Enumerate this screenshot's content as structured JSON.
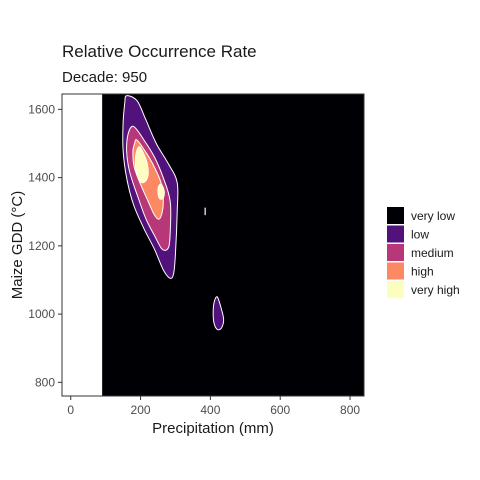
{
  "chart_data": {
    "type": "contour",
    "title": "Relative Occurrence Rate",
    "subtitle": "Decade: 950",
    "xlabel": "Precipitation (mm)",
    "ylabel": "Maize GDD (°C)",
    "xlim": [
      -25,
      840
    ],
    "ylim": [
      760,
      1645
    ],
    "x_ticks": [
      0,
      200,
      400,
      600,
      800
    ],
    "y_ticks": [
      800,
      1000,
      1200,
      1400,
      1600
    ],
    "no_data_x_max": 90,
    "grid": false,
    "legend_position": "right",
    "legend": [
      {
        "label": "very low",
        "color": "#000004"
      },
      {
        "label": "low",
        "color": "#51127c"
      },
      {
        "label": "medium",
        "color": "#b73779"
      },
      {
        "label": "high",
        "color": "#fc8961"
      },
      {
        "label": "very high",
        "color": "#fcfdbf"
      }
    ],
    "regions": [
      {
        "level": "low",
        "points": [
          [
            160,
            1640
          ],
          [
            190,
            1625
          ],
          [
            215,
            1570
          ],
          [
            245,
            1500
          ],
          [
            280,
            1440
          ],
          [
            305,
            1385
          ],
          [
            305,
            1300
          ],
          [
            300,
            1180
          ],
          [
            295,
            1120
          ],
          [
            285,
            1105
          ],
          [
            265,
            1130
          ],
          [
            240,
            1190
          ],
          [
            210,
            1250
          ],
          [
            180,
            1320
          ],
          [
            160,
            1400
          ],
          [
            150,
            1480
          ],
          [
            150,
            1560
          ],
          [
            155,
            1620
          ]
        ]
      },
      {
        "level": "medium",
        "points": [
          [
            180,
            1550
          ],
          [
            210,
            1510
          ],
          [
            240,
            1460
          ],
          [
            265,
            1400
          ],
          [
            285,
            1330
          ],
          [
            285,
            1240
          ],
          [
            280,
            1195
          ],
          [
            262,
            1190
          ],
          [
            240,
            1230
          ],
          [
            215,
            1280
          ],
          [
            190,
            1350
          ],
          [
            168,
            1420
          ],
          [
            160,
            1480
          ],
          [
            165,
            1530
          ]
        ]
      },
      {
        "level": "high",
        "points": [
          [
            190,
            1510
          ],
          [
            218,
            1470
          ],
          [
            240,
            1430
          ],
          [
            260,
            1380
          ],
          [
            265,
            1320
          ],
          [
            255,
            1280
          ],
          [
            240,
            1290
          ],
          [
            222,
            1330
          ],
          [
            200,
            1380
          ],
          [
            182,
            1430
          ],
          [
            178,
            1475
          ],
          [
            183,
            1500
          ]
        ]
      },
      {
        "level": "very high",
        "points": [
          [
            198,
            1490
          ],
          [
            215,
            1455
          ],
          [
            222,
            1420
          ],
          [
            218,
            1395
          ],
          [
            205,
            1385
          ],
          [
            192,
            1400
          ],
          [
            185,
            1440
          ],
          [
            188,
            1475
          ]
        ]
      },
      {
        "level": "very high",
        "points": [
          [
            260,
            1380
          ],
          [
            268,
            1360
          ],
          [
            265,
            1340
          ],
          [
            255,
            1338
          ],
          [
            250,
            1355
          ],
          [
            252,
            1375
          ]
        ]
      },
      {
        "level": "low",
        "points": [
          [
            420,
            1050
          ],
          [
            430,
            1020
          ],
          [
            438,
            985
          ],
          [
            432,
            960
          ],
          [
            420,
            955
          ],
          [
            410,
            975
          ],
          [
            408,
            1010
          ],
          [
            412,
            1040
          ]
        ]
      }
    ]
  }
}
